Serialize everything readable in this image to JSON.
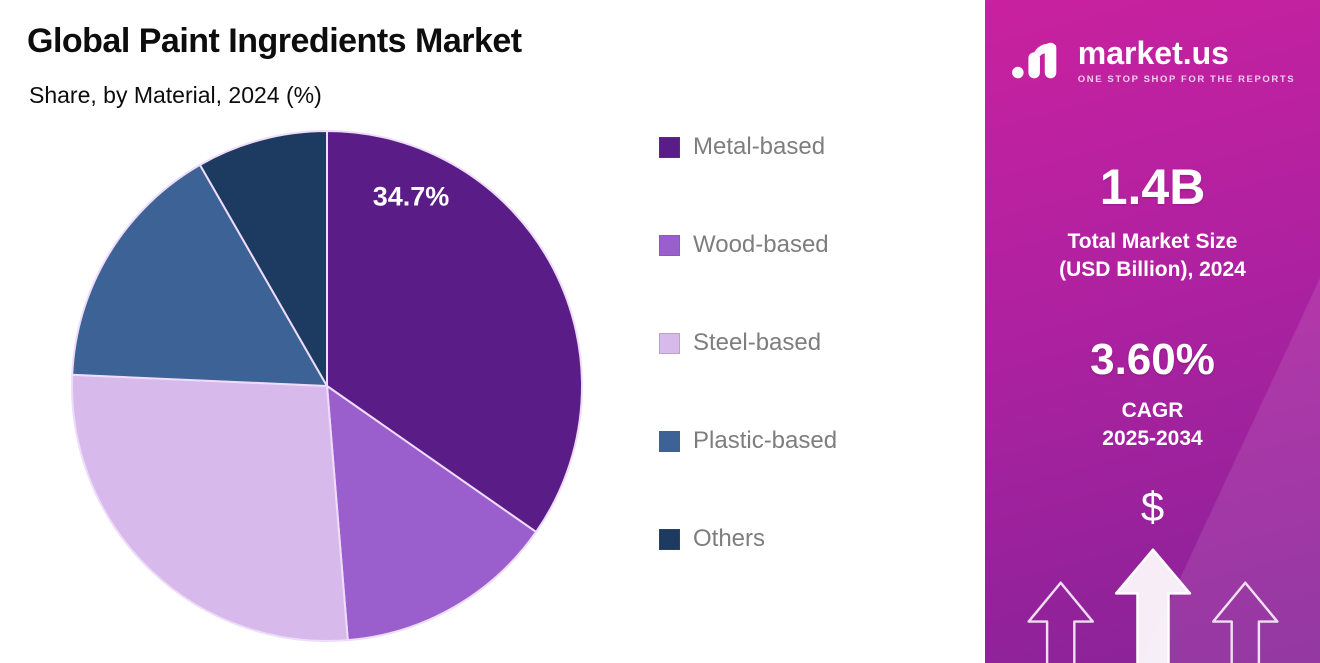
{
  "header": {
    "title": "Global Paint Ingredients Market",
    "subtitle": "Share, by Material, 2024 (%)"
  },
  "chart_data": {
    "type": "pie",
    "title": "Global Paint Ingredients Market",
    "subtitle": "Share, by Material, 2024 (%)",
    "unit": "%",
    "start_angle_deg": -90,
    "direction": "clockwise",
    "legend_position": "right",
    "slices": [
      {
        "label": "Metal-based",
        "value": 34.7,
        "color": "#5a1d87",
        "data_label": "34.7%"
      },
      {
        "label": "Wood-based",
        "value": 14.0,
        "color": "#9b5ecd",
        "data_label": ""
      },
      {
        "label": "Steel-based",
        "value": 27.0,
        "color": "#d8b9ec",
        "data_label": ""
      },
      {
        "label": "Plastic-based",
        "value": 16.0,
        "color": "#3c6296",
        "data_label": ""
      },
      {
        "label": "Others",
        "value": 8.3,
        "color": "#1d3a60",
        "data_label": ""
      }
    ]
  },
  "side_panel": {
    "brand": {
      "name": "market.us",
      "tagline": "ONE STOP SHOP FOR THE REPORTS"
    },
    "stats": [
      {
        "value": "1.4B",
        "caption_line1": "Total Market Size",
        "caption_line2": "(USD Billion), 2024"
      },
      {
        "value": "3.60%",
        "caption_line1": "CAGR",
        "caption_line2": "2025-2034"
      }
    ],
    "dollar_symbol": "$",
    "colors": {
      "gradient_start": "#c9219f",
      "gradient_end": "#872398"
    }
  }
}
